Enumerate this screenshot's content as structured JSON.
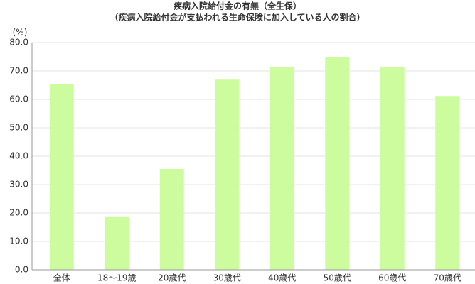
{
  "chart_data": {
    "type": "bar",
    "title": "疾病入院給付金の有無（全生保）",
    "subtitle": "（疾病入院給付金が支払われる生命保険に加入している人の割合）",
    "y_unit": "(%)",
    "categories": [
      "全体",
      "18〜19歳",
      "20歳代",
      "30歳代",
      "40歳代",
      "50歳代",
      "60歳代",
      "70歳代"
    ],
    "values": [
      65.5,
      18.8,
      35.5,
      67.2,
      71.4,
      75.0,
      71.5,
      61.2
    ],
    "color": "#cdfc9f",
    "ylim": [
      0,
      80
    ],
    "yticks": [
      {
        "value": 0,
        "label": "0.0"
      },
      {
        "value": 10,
        "label": "10.0"
      },
      {
        "value": 20,
        "label": "20.0"
      },
      {
        "value": 30,
        "label": "30.0"
      },
      {
        "value": 40,
        "label": "40.0"
      },
      {
        "value": 50,
        "label": "50.0"
      },
      {
        "value": 60,
        "label": "60.0"
      },
      {
        "value": 70,
        "label": "70.0"
      },
      {
        "value": 80,
        "label": "80.0"
      }
    ],
    "grid": true
  }
}
